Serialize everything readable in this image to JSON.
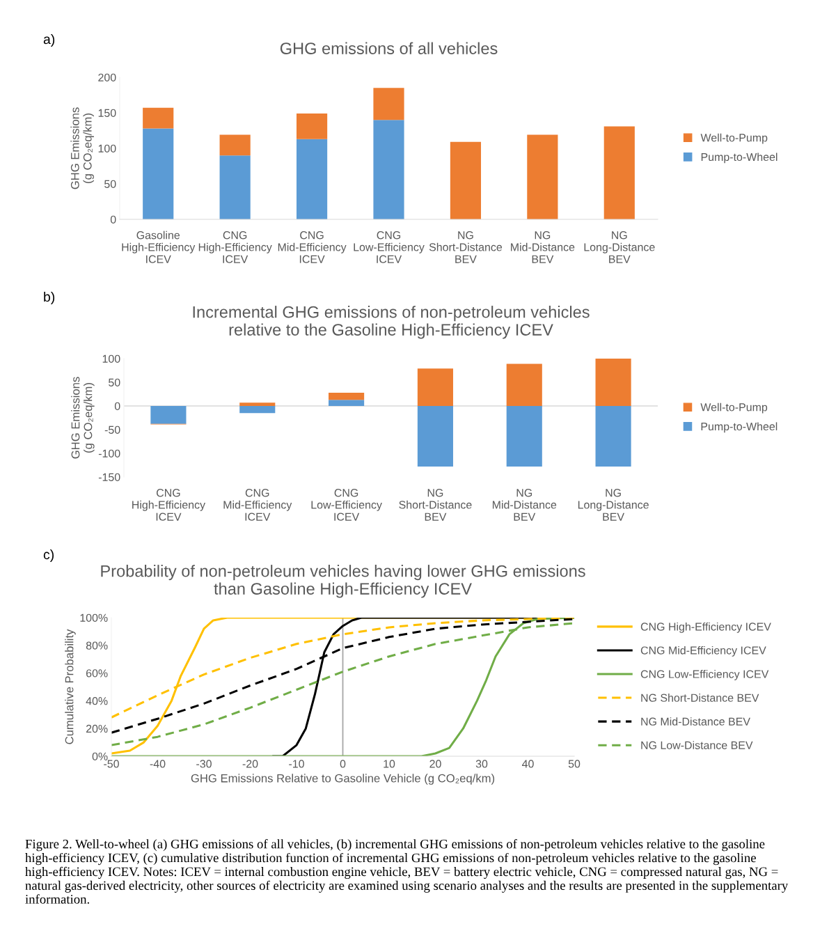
{
  "chart_data": [
    {
      "type": "bar",
      "title": "GHG emissions of all vehicles",
      "ylabel": "GHG Emissions\n(g CO₂eq/km)",
      "annotations": [
        "a)"
      ],
      "stacked": true,
      "legend": "right",
      "categories": [
        "Gasoline\nHigh-Efficiency\nICEV",
        "CNG\nHigh-Efficiency\nICEV",
        "CNG\nMid-Efficiency\nICEV",
        "CNG\nLow-Efficiency\nICEV",
        "NG\nShort-Distance\nBEV",
        "NG\nMid-Distance\nBEV",
        "NG\nLong-Distance\nBEV"
      ],
      "series": [
        {
          "name": "Pump-to-Wheel",
          "color": "#5b9bd5",
          "values": [
            128,
            90,
            113,
            140,
            null,
            null,
            null
          ]
        },
        {
          "name": "Well-to-Pump",
          "color": "#ed7d31",
          "values": [
            29,
            29,
            36,
            45,
            109,
            119,
            131
          ]
        }
      ],
      "ylim": [
        0,
        200
      ],
      "yticks": [
        0,
        50,
        100,
        150,
        200
      ]
    },
    {
      "type": "bar",
      "title": "Incremental GHG emissions of non-petroleum vehicles\nrelative to the Gasoline High-Efficiency ICEV",
      "ylabel": "GHG Emissions\n(g CO₂eq/km)",
      "annotations": [
        "b)"
      ],
      "stacked": true,
      "legend": "right",
      "categories": [
        "CNG\nHigh-Efficiency\nICEV",
        "CNG\nMid-Efficiency\nICEV",
        "CNG\nLow-Efficiency\nICEV",
        "NG\nShort-Distance\nBEV",
        "NG\nMid-Distance\nBEV",
        "NG\nLong-Distance\nBEV"
      ],
      "series": [
        {
          "name": "Pump-to-Wheel",
          "color": "#5b9bd5",
          "values": [
            -38,
            -15,
            13,
            -128,
            -128,
            -128
          ]
        },
        {
          "name": "Well-to-Pump",
          "color": "#ed7d31",
          "values": [
            -1,
            7,
            15,
            79,
            89,
            100
          ]
        }
      ],
      "ylim": [
        -150,
        100
      ],
      "yticks": [
        -150,
        -100,
        -50,
        0,
        50,
        100
      ]
    },
    {
      "type": "line",
      "title": "Probability of non-petroleum vehicles having lower GHG emissions\nthan Gasoline High-Efficiency ICEV",
      "xlabel": "GHG Emissions Relative to Gasoline Vehicle (g CO₂eq/km)",
      "ylabel": "Cumulative Probability",
      "legend": "right",
      "annotations": [
        "c)",
        "Figure 2. Well-to-wheel (a) GHG emissions of all vehicles, (b) incremental GHG emissions of non-petroleum vehicles relative to the gasoline high-efficiency ICEV, (c) cumulative distribution function of incremental GHG emissions of non-petroleum vehicles relative to the gasoline high-efficiency ICEV. Notes: ICEV = internal combustion engine vehicle, BEV = battery electric vehicle, CNG = compressed natural gas, NG = natural gas-derived electricity, other sources of electricity are examined using scenario analyses and the results are presented in the supplementary information."
      ],
      "xlim": [
        -50,
        50
      ],
      "xticks": [
        -50,
        -40,
        -30,
        -20,
        -10,
        0,
        10,
        20,
        30,
        40,
        50
      ],
      "ylim": [
        0,
        100
      ],
      "yticks": [
        {
          "value": 0,
          "label": "0%"
        },
        {
          "value": 20,
          "label": "20%"
        },
        {
          "value": 40,
          "label": "40%"
        },
        {
          "value": 60,
          "label": "60%"
        },
        {
          "value": 80,
          "label": "80%"
        },
        {
          "value": 100,
          "label": "100%"
        }
      ],
      "ref_lines": [
        {
          "axis": "x",
          "value": 0,
          "color": "#a6a6a6"
        }
      ],
      "series": [
        {
          "name": "CNG High-Efficiency ICEV",
          "color": "#ffc000",
          "line_style": "solid",
          "x": [
            -50,
            -46,
            -43,
            -40,
            -37,
            -35,
            -32,
            -30,
            -28,
            -25,
            -15,
            0,
            10,
            50
          ],
          "values": [
            2,
            4,
            10,
            22,
            40,
            58,
            78,
            92,
            98,
            100,
            100,
            100,
            100,
            100
          ]
        },
        {
          "name": "CNG Mid-Efficiency ICEV",
          "color": "#000000",
          "line_style": "solid",
          "x": [
            -15,
            -13,
            -10,
            -8,
            -6,
            -5,
            -4,
            -2,
            0,
            2,
            4,
            7,
            50
          ],
          "values": [
            0,
            0,
            8,
            20,
            45,
            60,
            75,
            88,
            94,
            98,
            100,
            100,
            100
          ]
        },
        {
          "name": "CNG Low-Efficiency ICEV",
          "color": "#70ad47",
          "line_style": "solid",
          "x": [
            -50,
            15,
            17,
            20,
            23,
            26,
            29,
            31,
            33,
            36,
            39,
            42,
            50
          ],
          "values": [
            0,
            0,
            0,
            2,
            6,
            20,
            40,
            55,
            72,
            88,
            96,
            99,
            100
          ]
        },
        {
          "name": "NG Short-Distance BEV",
          "color": "#ffc000",
          "line_style": "dashed",
          "x": [
            -50,
            -40,
            -30,
            -20,
            -10,
            0,
            10,
            20,
            30,
            40,
            50
          ],
          "values": [
            28,
            44,
            59,
            71,
            81,
            88,
            93,
            96,
            98,
            99,
            100
          ]
        },
        {
          "name": "NG Mid-Distance BEV",
          "color": "#000000",
          "line_style": "dashed",
          "x": [
            -50,
            -40,
            -30,
            -20,
            -10,
            0,
            10,
            20,
            30,
            40,
            50
          ],
          "values": [
            17,
            27,
            38,
            51,
            63,
            78,
            86,
            92,
            95,
            97,
            99
          ]
        },
        {
          "name": "NG Low-Distance BEV",
          "color": "#70ad47",
          "line_style": "dashed",
          "x": [
            -50,
            -40,
            -30,
            -20,
            -10,
            0,
            10,
            20,
            30,
            40,
            50
          ],
          "values": [
            8,
            14,
            23,
            35,
            48,
            61,
            72,
            81,
            87,
            93,
            96
          ]
        }
      ]
    }
  ]
}
